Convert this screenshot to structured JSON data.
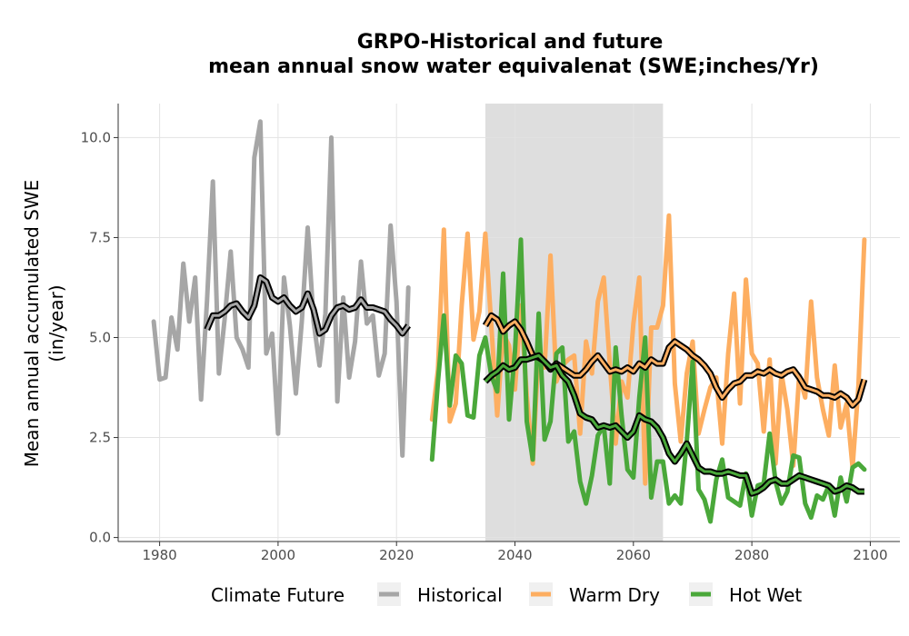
{
  "chart_data": {
    "type": "line",
    "title": "GRPO-Historical and future",
    "subtitle": "mean annual snow water equivalenat (SWE;inches/Yr)",
    "xlabel": "",
    "ylabel": "Mean annual accumulated SWE",
    "ylabel_line2": "(in/year)",
    "xlim": [
      1973,
      2105
    ],
    "ylim": [
      -0.1,
      10.85
    ],
    "x_ticks": [
      1980,
      2000,
      2020,
      2040,
      2060,
      2080,
      2100
    ],
    "x_tick_labels": [
      "1980",
      "2000",
      "2020",
      "2040",
      "2060",
      "2080",
      "2100"
    ],
    "y_ticks": [
      0.0,
      2.5,
      5.0,
      7.5,
      10.0
    ],
    "y_tick_labels": [
      "0.0",
      "2.5",
      "5.0",
      "7.5",
      "10.0"
    ],
    "grid": true,
    "shaded_period": [
      2035,
      2065
    ],
    "legend": {
      "title": "Climate Future",
      "position": "bottom",
      "items": [
        "Historical",
        "Warm Dry",
        "Hot Wet"
      ]
    },
    "colors": {
      "historical": "#a6a6a6",
      "warm_dry": "#fdae61",
      "hot_wet": "#4aa83a",
      "smooth": "#000000",
      "shade": "#dcdcdc",
      "grid": "#e3e3e3"
    },
    "series": [
      {
        "name": "Historical",
        "x": [
          1979,
          1980,
          1981,
          1982,
          1983,
          1984,
          1985,
          1986,
          1987,
          1988,
          1989,
          1990,
          1991,
          1992,
          1993,
          1994,
          1995,
          1996,
          1997,
          1998,
          1999,
          2000,
          2001,
          2002,
          2003,
          2004,
          2005,
          2006,
          2007,
          2008,
          2009,
          2010,
          2011,
          2012,
          2013,
          2014,
          2015,
          2016,
          2017,
          2018,
          2019,
          2020,
          2021,
          2022
        ],
        "values": [
          5.4,
          3.95,
          4.0,
          5.5,
          4.7,
          6.85,
          5.4,
          6.5,
          3.45,
          5.9,
          8.9,
          4.1,
          5.5,
          7.15,
          5.0,
          4.7,
          4.25,
          9.5,
          10.4,
          4.6,
          5.1,
          2.6,
          6.5,
          5.3,
          3.6,
          5.4,
          7.75,
          5.4,
          4.3,
          5.6,
          10.0,
          3.4,
          6.0,
          4.0,
          4.9,
          6.9,
          5.35,
          5.55,
          4.05,
          4.6,
          7.8,
          5.9,
          2.05,
          6.25
        ]
      },
      {
        "name": "Historical smoothed",
        "x": [
          1988,
          1989,
          1990,
          1991,
          1992,
          1993,
          1994,
          1995,
          1996,
          1997,
          1998,
          1999,
          2000,
          2001,
          2002,
          2003,
          2004,
          2005,
          2006,
          2007,
          2008,
          2009,
          2010,
          2011,
          2012,
          2013,
          2014,
          2015,
          2016,
          2017,
          2018,
          2019,
          2020,
          2021,
          2022
        ],
        "values": [
          5.2,
          5.55,
          5.55,
          5.65,
          5.8,
          5.85,
          5.65,
          5.5,
          5.8,
          6.5,
          6.4,
          6.0,
          5.9,
          6.0,
          5.8,
          5.65,
          5.75,
          6.1,
          5.7,
          5.1,
          5.2,
          5.55,
          5.75,
          5.8,
          5.7,
          5.75,
          5.95,
          5.75,
          5.75,
          5.7,
          5.65,
          5.45,
          5.3,
          5.1,
          5.3
        ]
      },
      {
        "name": "Warm Dry",
        "x": [
          2026,
          2027,
          2028,
          2029,
          2030,
          2031,
          2032,
          2033,
          2034,
          2035,
          2036,
          2037,
          2038,
          2039,
          2040,
          2041,
          2042,
          2043,
          2044,
          2045,
          2046,
          2047,
          2048,
          2049,
          2050,
          2051,
          2052,
          2053,
          2054,
          2055,
          2056,
          2057,
          2058,
          2059,
          2060,
          2061,
          2062,
          2063,
          2064,
          2065,
          2066,
          2067,
          2068,
          2069,
          2070,
          2071,
          2072,
          2073,
          2074,
          2075,
          2076,
          2077,
          2078,
          2079,
          2080,
          2081,
          2082,
          2083,
          2084,
          2085,
          2086,
          2087,
          2088,
          2089,
          2090,
          2091,
          2092,
          2093,
          2094,
          2095,
          2096,
          2097,
          2098,
          2099
        ],
        "values": [
          2.95,
          4.2,
          7.7,
          2.9,
          3.35,
          5.8,
          7.6,
          4.95,
          5.65,
          7.6,
          5.3,
          3.05,
          5.1,
          4.8,
          3.7,
          5.8,
          3.55,
          1.85,
          4.75,
          4.25,
          7.05,
          3.9,
          4.3,
          4.45,
          4.55,
          2.6,
          4.9,
          4.1,
          5.9,
          6.5,
          4.35,
          2.35,
          3.9,
          3.5,
          5.35,
          6.5,
          1.35,
          5.25,
          5.25,
          5.8,
          8.05,
          3.85,
          2.4,
          4.1,
          4.9,
          2.6,
          3.2,
          3.75,
          4.0,
          2.35,
          4.6,
          6.1,
          3.35,
          6.45,
          4.6,
          4.35,
          2.65,
          4.45,
          1.85,
          4.1,
          3.2,
          1.8,
          4.05,
          3.5,
          5.9,
          4.0,
          3.2,
          2.55,
          4.3,
          2.75,
          3.35,
          1.75,
          3.8,
          7.45
        ]
      },
      {
        "name": "Warm Dry smoothed",
        "x": [
          2035,
          2036,
          2037,
          2038,
          2039,
          2040,
          2041,
          2042,
          2043,
          2044,
          2045,
          2046,
          2047,
          2048,
          2049,
          2050,
          2051,
          2052,
          2053,
          2054,
          2055,
          2056,
          2057,
          2058,
          2059,
          2060,
          2061,
          2062,
          2063,
          2064,
          2065,
          2066,
          2067,
          2068,
          2069,
          2070,
          2071,
          2072,
          2073,
          2074,
          2075,
          2076,
          2077,
          2078,
          2079,
          2080,
          2081,
          2082,
          2083,
          2084,
          2085,
          2086,
          2087,
          2088,
          2089,
          2090,
          2091,
          2092,
          2093,
          2094,
          2095,
          2096,
          2097,
          2098,
          2099
        ],
        "values": [
          5.3,
          5.55,
          5.45,
          5.15,
          5.3,
          5.4,
          5.2,
          4.9,
          4.55,
          4.5,
          4.4,
          4.2,
          4.35,
          4.25,
          4.15,
          4.05,
          4.05,
          4.2,
          4.4,
          4.55,
          4.35,
          4.15,
          4.2,
          4.15,
          4.25,
          4.15,
          4.35,
          4.25,
          4.45,
          4.35,
          4.35,
          4.75,
          4.9,
          4.8,
          4.7,
          4.55,
          4.45,
          4.3,
          4.1,
          3.75,
          3.5,
          3.7,
          3.85,
          3.9,
          4.05,
          4.05,
          4.15,
          4.1,
          4.2,
          4.1,
          4.05,
          4.15,
          4.2,
          4.0,
          3.75,
          3.7,
          3.65,
          3.55,
          3.55,
          3.5,
          3.6,
          3.5,
          3.3,
          3.45,
          3.95
        ]
      },
      {
        "name": "Hot Wet",
        "x": [
          2026,
          2027,
          2028,
          2029,
          2030,
          2031,
          2032,
          2033,
          2034,
          2035,
          2036,
          2037,
          2038,
          2039,
          2040,
          2041,
          2042,
          2043,
          2044,
          2045,
          2046,
          2047,
          2048,
          2049,
          2050,
          2051,
          2052,
          2053,
          2054,
          2055,
          2056,
          2057,
          2058,
          2059,
          2060,
          2061,
          2062,
          2063,
          2064,
          2065,
          2066,
          2067,
          2068,
          2069,
          2070,
          2071,
          2072,
          2073,
          2074,
          2075,
          2076,
          2077,
          2078,
          2079,
          2080,
          2081,
          2082,
          2083,
          2084,
          2085,
          2086,
          2087,
          2088,
          2089,
          2090,
          2091,
          2092,
          2093,
          2094,
          2095,
          2096,
          2097,
          2098,
          2099
        ],
        "values": [
          1.95,
          3.9,
          5.55,
          3.3,
          4.55,
          4.35,
          3.05,
          3.0,
          4.55,
          5.0,
          4.05,
          3.65,
          6.6,
          2.95,
          4.65,
          7.45,
          2.9,
          1.95,
          5.6,
          2.45,
          2.9,
          4.6,
          4.75,
          2.4,
          2.65,
          1.4,
          0.85,
          1.55,
          2.55,
          2.8,
          1.35,
          4.75,
          3.05,
          1.7,
          1.5,
          3.5,
          5.0,
          1.0,
          1.9,
          1.9,
          0.85,
          1.05,
          0.85,
          2.4,
          4.4,
          1.2,
          0.95,
          0.4,
          1.45,
          1.95,
          1.0,
          0.9,
          0.8,
          1.6,
          0.55,
          1.3,
          1.35,
          2.6,
          1.4,
          0.85,
          1.15,
          2.05,
          2.0,
          0.85,
          0.5,
          1.05,
          0.95,
          1.3,
          0.55,
          1.5,
          0.9,
          1.75,
          1.85,
          1.7
        ]
      },
      {
        "name": "Hot Wet smoothed",
        "x": [
          2035,
          2036,
          2037,
          2038,
          2039,
          2040,
          2041,
          2042,
          2043,
          2044,
          2045,
          2046,
          2047,
          2048,
          2049,
          2050,
          2051,
          2052,
          2053,
          2054,
          2055,
          2056,
          2057,
          2058,
          2059,
          2060,
          2061,
          2062,
          2063,
          2064,
          2065,
          2066,
          2067,
          2068,
          2069,
          2070,
          2071,
          2072,
          2073,
          2074,
          2075,
          2076,
          2077,
          2078,
          2079,
          2080,
          2081,
          2082,
          2083,
          2084,
          2085,
          2086,
          2087,
          2088,
          2089,
          2090,
          2091,
          2092,
          2093,
          2094,
          2095,
          2096,
          2097,
          2098,
          2099
        ],
        "values": [
          3.9,
          4.05,
          4.15,
          4.3,
          4.2,
          4.25,
          4.45,
          4.45,
          4.5,
          4.55,
          4.4,
          4.25,
          4.3,
          4.05,
          3.9,
          3.55,
          3.1,
          3.0,
          2.95,
          2.75,
          2.8,
          2.75,
          2.8,
          2.65,
          2.5,
          2.65,
          3.05,
          2.95,
          2.9,
          2.75,
          2.5,
          2.1,
          1.9,
          2.1,
          2.35,
          2.05,
          1.75,
          1.65,
          1.65,
          1.6,
          1.6,
          1.65,
          1.6,
          1.55,
          1.55,
          1.1,
          1.15,
          1.25,
          1.4,
          1.45,
          1.35,
          1.35,
          1.45,
          1.55,
          1.5,
          1.45,
          1.4,
          1.35,
          1.3,
          1.15,
          1.2,
          1.3,
          1.25,
          1.15,
          1.15
        ]
      }
    ]
  }
}
